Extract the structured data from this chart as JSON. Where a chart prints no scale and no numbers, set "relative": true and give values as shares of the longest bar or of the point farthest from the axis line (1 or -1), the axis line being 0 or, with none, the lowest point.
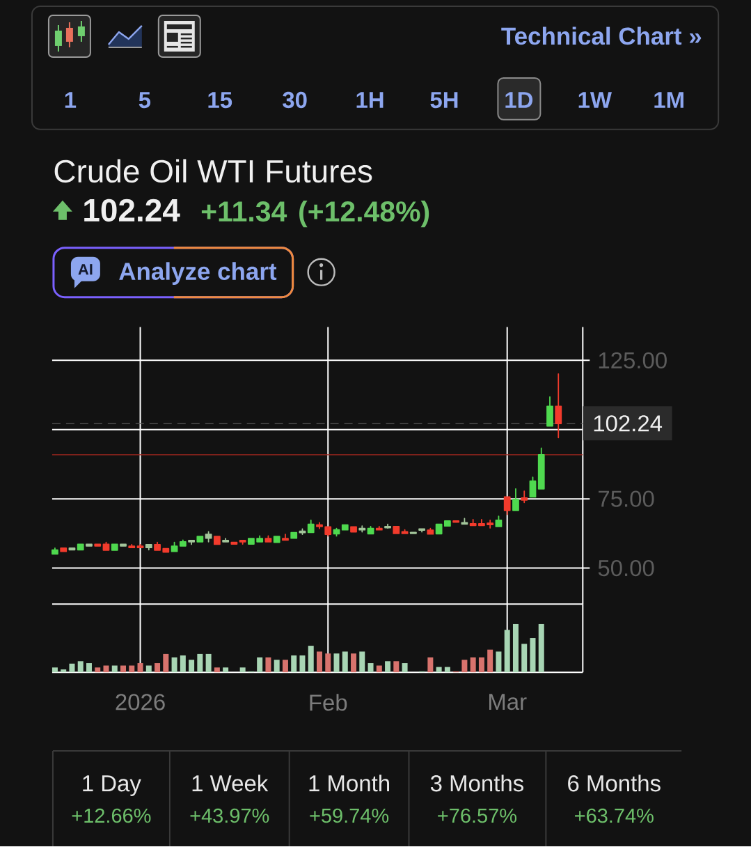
{
  "chart_data": [
    {
      "type": "candlestick",
      "title": "Crude Oil WTI Futures",
      "subtitle": "102.24",
      "categories": [
        null,
        null,
        null,
        null,
        null,
        null,
        null,
        null,
        null,
        null,
        null,
        null,
        null,
        null,
        null,
        null,
        null,
        null,
        null,
        null,
        null,
        null,
        null,
        null,
        null,
        null,
        null,
        null,
        null,
        null,
        null,
        null,
        null,
        null,
        null,
        null,
        null,
        null,
        null,
        null,
        null,
        null,
        null,
        null,
        null,
        null,
        null,
        null,
        null,
        null,
        null,
        null,
        null,
        null,
        null,
        null,
        null,
        null,
        null,
        null
      ],
      "ohlc": [
        [
          55.1,
          57.2,
          55.1,
          56.5
        ],
        [
          57.2,
          57.2,
          56.0,
          56.0
        ],
        [
          56.6,
          57.2,
          56.6,
          57.2
        ],
        [
          56.6,
          58.6,
          56.6,
          58.6
        ],
        [
          58.0,
          58.6,
          58.0,
          58.6
        ],
        [
          58.6,
          58.6,
          58.0,
          58.0
        ],
        [
          58.6,
          59.3,
          56.5,
          56.5
        ],
        [
          56.5,
          58.6,
          56.5,
          58.6
        ],
        [
          58.0,
          58.6,
          58.0,
          58.6
        ],
        [
          57.9,
          58.5,
          57.4,
          57.4
        ],
        [
          57.9,
          58.5,
          57.4,
          57.4
        ],
        [
          57.4,
          58.5,
          56.6,
          58.5
        ],
        [
          58.5,
          59.3,
          56.5,
          56.5
        ],
        [
          57.0,
          57.0,
          55.8,
          55.8
        ],
        [
          56.0,
          59.3,
          56.0,
          57.9
        ],
        [
          58.0,
          60.1,
          58.0,
          59.5
        ],
        [
          59.5,
          60.0,
          58.6,
          60.0
        ],
        [
          59.5,
          61.4,
          59.5,
          61.4
        ],
        [
          60.8,
          63.1,
          59.5,
          62.2
        ],
        [
          61.4,
          61.4,
          58.6,
          58.6
        ],
        [
          59.5,
          60.7,
          59.5,
          60.0
        ],
        [
          59.3,
          59.3,
          58.7,
          58.7
        ],
        [
          60.0,
          60.0,
          58.7,
          59.5
        ],
        [
          58.7,
          60.7,
          58.7,
          60.7
        ],
        [
          59.5,
          61.6,
          59.5,
          60.7
        ],
        [
          60.7,
          61.6,
          59.5,
          59.5
        ],
        [
          59.3,
          61.4,
          59.3,
          61.4
        ],
        [
          60.7,
          62.2,
          60.1,
          60.1
        ],
        [
          60.8,
          62.8,
          60.8,
          62.8
        ],
        [
          62.8,
          64.1,
          62.2,
          63.3
        ],
        [
          62.9,
          67.3,
          62.9,
          65.8
        ],
        [
          65.6,
          66.4,
          64.3,
          65.0
        ],
        [
          64.9,
          64.9,
          61.6,
          62.2
        ],
        [
          62.4,
          64.3,
          61.6,
          63.8
        ],
        [
          63.8,
          65.6,
          63.8,
          65.6
        ],
        [
          64.9,
          64.9,
          63.1,
          63.1
        ],
        [
          63.8,
          65.2,
          63.1,
          64.3
        ],
        [
          62.4,
          65.0,
          62.4,
          64.3
        ],
        [
          64.3,
          65.0,
          63.8,
          63.8
        ],
        [
          64.6,
          65.8,
          64.4,
          65.0
        ],
        [
          65.0,
          65.0,
          62.5,
          62.5
        ],
        [
          63.1,
          63.8,
          62.5,
          62.5
        ],
        [
          62.5,
          62.9,
          62.5,
          62.9
        ],
        [
          63.7,
          64.1,
          63.1,
          64.1
        ],
        [
          63.7,
          64.3,
          62.3,
          62.3
        ],
        [
          62.4,
          65.8,
          62.4,
          65.8
        ],
        [
          65.2,
          67.0,
          65.2,
          67.0
        ],
        [
          67.0,
          67.0,
          66.6,
          66.6
        ],
        [
          65.9,
          67.9,
          65.9,
          66.4
        ],
        [
          66.0,
          67.5,
          65.4,
          65.4
        ],
        [
          66.0,
          67.5,
          65.4,
          65.4
        ],
        [
          66.2,
          67.3,
          64.5,
          65.7
        ],
        [
          65.0,
          68.7,
          65.0,
          67.3
        ],
        [
          75.7,
          75.7,
          69.4,
          70.8
        ],
        [
          70.8,
          78.6,
          70.8,
          74.8
        ],
        [
          75.3,
          77.8,
          73.7,
          74.6
        ],
        [
          75.7,
          82.8,
          75.7,
          81.4
        ],
        [
          78.6,
          93.3,
          78.6,
          90.9
        ],
        [
          101.3,
          111.8,
          101.3,
          108.4
        ],
        [
          108.4,
          120.1,
          97.1,
          102.2
        ]
      ],
      "colors": [
        "#4fd94f",
        "#f23b2c",
        "#a3c59a",
        "#4fd94f",
        "#a3c59a",
        "#f23b2c",
        "#f23b2c",
        "#4fd94f",
        "#a3c59a",
        "#f23b2c",
        "#f23b2c",
        "#a3c59a",
        "#f23b2c",
        "#f23b2c",
        "#4fd94f",
        "#4fd94f",
        "#a3c59a",
        "#4fd94f",
        "#a3c59a",
        "#f23b2c",
        "#a3c59a",
        "#f23b2c",
        "#f23b2c",
        "#4fd94f",
        "#4fd94f",
        "#f23b2c",
        "#4fd94f",
        "#f23b2c",
        "#4fd94f",
        "#a3c59a",
        "#4fd94f",
        "#f23b2c",
        "#f23b2c",
        "#4fd94f",
        "#4fd94f",
        "#f23b2c",
        "#a3c59a",
        "#4fd94f",
        "#f23b2c",
        "#a3c59a",
        "#f23b2c",
        "#f23b2c",
        "#a3c59a",
        "#a3c59a",
        "#f23b2c",
        "#4fd94f",
        "#4fd94f",
        "#f23b2c",
        "#a3c59a",
        "#f23b2c",
        "#f23b2c",
        "#f23b2c",
        "#4fd94f",
        "#f23b2c",
        "#4fd94f",
        "#f23b2c",
        "#4fd94f",
        "#4fd94f",
        "#4fd94f",
        "#f23b2c"
      ],
      "ylim": [
        37,
        137
      ],
      "yticks": [
        {
          "value": 125,
          "label": "125.00"
        },
        {
          "value": 100,
          "label": null
        },
        {
          "value": 75,
          "label": "75.00"
        },
        {
          "value": 50,
          "label": "50.00"
        }
      ],
      "grid": true,
      "tick_labels": "y",
      "ref_lines": [
        {
          "axis": "y",
          "value": 102.24,
          "label": "102.24",
          "color": "#5a5a5a",
          "line_style": "dashed"
        },
        {
          "axis": "y",
          "value": 90.9,
          "color": "#a3271f"
        }
      ],
      "annotations": [
        "Technical Chart »",
        "1",
        "5",
        "15",
        "30",
        "1H",
        "5H",
        "1D",
        "1W",
        "1M",
        "+11.34",
        "(+12.48%)",
        "AI",
        "Analyze chart",
        "1 Day",
        "+12.66%",
        "1 Week",
        "+43.97%",
        "1 Month",
        "+59.74%",
        "3 Months",
        "+76.57%",
        "6 Months",
        "+63.74%"
      ]
    },
    {
      "type": "bar",
      "relative": true,
      "grid": "x",
      "categories": [
        null,
        null,
        null,
        null,
        null,
        null,
        null,
        null,
        null,
        null,
        "2026",
        null,
        null,
        null,
        null,
        null,
        null,
        null,
        null,
        null,
        null,
        null,
        null,
        null,
        null,
        null,
        null,
        null,
        null,
        null,
        null,
        null,
        "Feb",
        null,
        null,
        null,
        null,
        null,
        null,
        null,
        null,
        null,
        null,
        null,
        null,
        null,
        null,
        null,
        null,
        null,
        null,
        null,
        null,
        "Mar",
        null,
        null,
        null,
        null,
        null,
        null
      ],
      "values": [
        0.1,
        0.06,
        0.18,
        0.23,
        0.19,
        0.1,
        0.14,
        0.14,
        0.14,
        0.14,
        0.19,
        0.14,
        0.19,
        0.38,
        0.31,
        0.35,
        0.26,
        0.38,
        0.38,
        0.1,
        0.1,
        null,
        0.1,
        0.02,
        0.31,
        0.31,
        0.26,
        0.26,
        0.35,
        0.35,
        0.55,
        0.43,
        0.39,
        0.39,
        0.43,
        0.39,
        0.43,
        0.19,
        0.14,
        0.23,
        0.23,
        0.19,
        null,
        0.02,
        0.31,
        0.11,
        0.11,
        0.02,
        0.26,
        0.31,
        0.31,
        0.47,
        0.43,
        0.88,
        1,
        0.59,
        0.71,
        1,
        null,
        null
      ],
      "colors": [
        "#a8d5b4",
        "#a8d5b4",
        "#a8d5b4",
        "#a8d5b4",
        "#a8d5b4",
        "#d8736d",
        "#d8736d",
        "#a8d5b4",
        "#d8736d",
        "#d8736d",
        "#d8736d",
        "#a8d5b4",
        "#d8736d",
        "#d8736d",
        "#a8d5b4",
        "#a8d5b4",
        "#a8d5b4",
        "#a8d5b4",
        "#a8d5b4",
        "#d8736d",
        "#a8d5b4",
        null,
        "#a8d5b4",
        "#a8d5b4",
        "#a8d5b4",
        "#d8736d",
        "#a8d5b4",
        "#d8736d",
        "#a8d5b4",
        "#a8d5b4",
        "#a8d5b4",
        "#d8736d",
        "#d8736d",
        "#a8d5b4",
        "#a8d5b4",
        "#d8736d",
        "#a8d5b4",
        "#a8d5b4",
        "#d8736d",
        "#a8d5b4",
        "#d8736d",
        "#a8d5b4",
        null,
        "#a8d5b4",
        "#d8736d",
        "#a8d5b4",
        "#a8d5b4",
        "#d8736d",
        "#d8736d",
        "#d8736d",
        "#d8736d",
        "#d8736d",
        "#a8d5b4",
        "#a8d5b4",
        "#a8d5b4",
        "#a8d5b4",
        "#a8d5b4",
        "#a8d5b4",
        null,
        null
      ]
    }
  ]
}
